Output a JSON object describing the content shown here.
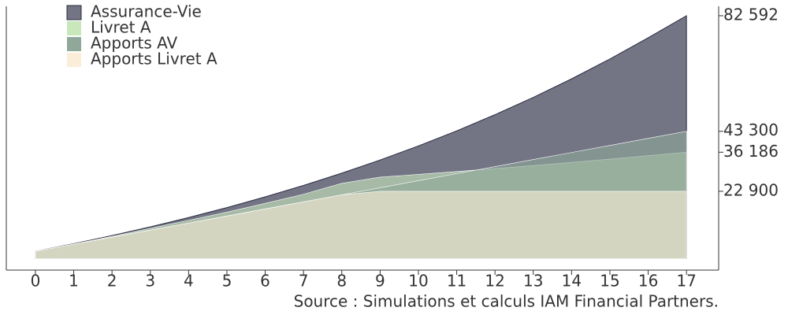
{
  "chart_data": {
    "type": "area",
    "x": [
      0,
      1,
      2,
      3,
      4,
      5,
      6,
      7,
      8,
      9,
      10,
      11,
      12,
      13,
      14,
      15,
      16,
      17
    ],
    "series": [
      {
        "name": "Assurance-Vie",
        "color": "#737585",
        "values": [
          2500,
          5078,
          7840,
          10798,
          13967,
          17361,
          20997,
          24892,
          29064,
          33533,
          38321,
          43450,
          48944,
          54829,
          61133,
          67886,
          75120,
          82592
        ]
      },
      {
        "name": "Livret A",
        "color": "#c8e8bc",
        "values": [
          2500,
          5000,
          7600,
          10300,
          13000,
          15800,
          18800,
          21900,
          25600,
          27700,
          28640,
          29610,
          30620,
          31660,
          32730,
          33850,
          35000,
          36186
        ]
      },
      {
        "name": "Apports AV",
        "color": "#8fa89a",
        "values": [
          2500,
          4900,
          7300,
          9700,
          12100,
          14500,
          16900,
          19300,
          21700,
          24100,
          26500,
          28900,
          31300,
          33700,
          36100,
          38500,
          40900,
          43300
        ]
      },
      {
        "name": "Apports Livret A",
        "color": "#fbeed8",
        "values": [
          2500,
          4900,
          7300,
          9700,
          12100,
          14500,
          16900,
          19300,
          21700,
          22900,
          22900,
          22900,
          22900,
          22900,
          22900,
          22900,
          22900,
          22900
        ]
      }
    ],
    "xlim": [
      -0.76,
      17.84
    ],
    "xticks": [
      0,
      1,
      2,
      3,
      4,
      5,
      6,
      7,
      8,
      9,
      10,
      11,
      12,
      13,
      14,
      15,
      16,
      17
    ],
    "ylim": [
      -3900,
      85800
    ],
    "yticks": [
      {
        "value": 22900,
        "label": "22 900"
      },
      {
        "value": 36186,
        "label": "36 186"
      },
      {
        "value": 43300,
        "label": "43 300"
      },
      {
        "value": 82592,
        "label": "82 592"
      }
    ],
    "y_axis_side": "right",
    "legend": "top-left",
    "source": "Source : Simulations et calculs IAM Financial Partners."
  }
}
